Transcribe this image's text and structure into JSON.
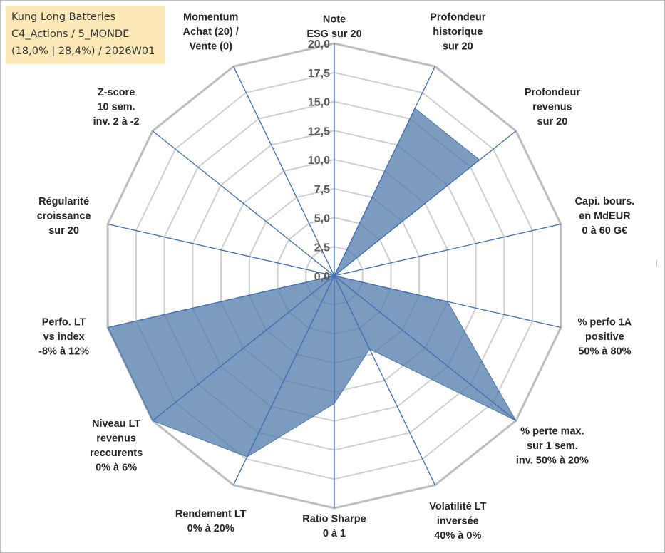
{
  "info_box": {
    "line1": "Kung Long Batteries",
    "line2": "C4_Actions / 5_MONDE",
    "line3": "(18,0% | 28,4%) / 2026W01",
    "background": "#fde9b8"
  },
  "chart_data": {
    "type": "radar",
    "title": "",
    "axes": [
      [
        "Note",
        "ESG sur 20"
      ],
      [
        "Profondeur",
        "historique",
        "sur 20"
      ],
      [
        "Profondeur",
        "revenus",
        "sur 20"
      ],
      [
        "Capi. bours.",
        "en MdEUR",
        "0 à 60 G€"
      ],
      [
        "% perfo 1A",
        "positive",
        "50% à 80%"
      ],
      [
        "% perte max.",
        "sur 1 sem.",
        "inv. 50% à 20%"
      ],
      [
        "Volatilité LT",
        "inversée",
        "40% à 0%"
      ],
      [
        "Ratio Sharpe",
        "0 à 1"
      ],
      [
        "Rendement LT",
        "0% à 20%"
      ],
      [
        "Niveau LT",
        "revenus",
        "reccurents",
        "0% à 6%"
      ],
      [
        "Perfo. LT",
        "vs index",
        "-8% à 12%"
      ],
      [
        "Régularité",
        "croissance",
        "sur 20"
      ],
      [
        "Z-score",
        "10 sem.",
        "inv. 2 à -2"
      ],
      [
        "Momentum",
        "Achat (20) /",
        "Vente (0)"
      ]
    ],
    "series": [
      {
        "values": [
          0,
          16,
          16,
          0,
          10,
          20,
          7,
          11,
          17.3,
          20,
          20,
          0,
          0,
          0
        ]
      }
    ],
    "rlim": [
      0,
      20
    ],
    "ticks": [
      "0,0",
      "2,5",
      "5,0",
      "7,5",
      "10,0",
      "12,5",
      "15,0",
      "17,5",
      "20,0"
    ],
    "grid": true,
    "colors": {
      "fill": "#4f79aa",
      "spoke": "#3f6eb5",
      "grid": "#cfcfcf",
      "outer_grid": "#bdbdbd"
    }
  }
}
